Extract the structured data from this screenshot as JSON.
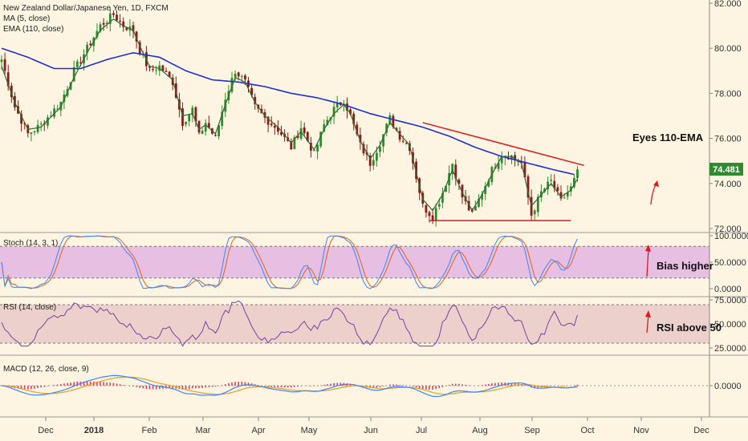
{
  "chart_data": {
    "type": "candlestick",
    "symbol_title": "New Zealand Dollar/Japanese Yen, 1D, FXCM",
    "indicators_main": [
      "MA (5, close)",
      "EMA (110, close)"
    ],
    "x_ticks": [
      "Dec",
      "2018",
      "Feb",
      "Mar",
      "Apr",
      "May",
      "Jun",
      "Jul",
      "Aug",
      "Sep",
      "Oct",
      "Nov",
      "Dec"
    ],
    "main": {
      "y_ticks": [
        "82.000",
        "80.000",
        "78.000",
        "76.000",
        "74.000",
        "72.000"
      ],
      "ylim": [
        72,
        82
      ],
      "last_price": "74.481",
      "price_path": [
        [
          0,
          79.5
        ],
        [
          4,
          77.4
        ],
        [
          8,
          76.2
        ],
        [
          12,
          76.6
        ],
        [
          18,
          77.6
        ],
        [
          22,
          79.0
        ],
        [
          26,
          80.0
        ],
        [
          30,
          81.0
        ],
        [
          34,
          81.5
        ],
        [
          37,
          81.0
        ],
        [
          40,
          80.8
        ],
        [
          42,
          79.9
        ],
        [
          45,
          79.0
        ],
        [
          48,
          79.2
        ],
        [
          52,
          78.5
        ],
        [
          55,
          76.7
        ],
        [
          58,
          77.3
        ],
        [
          60,
          76.1
        ],
        [
          62,
          76.7
        ],
        [
          65,
          76.0
        ],
        [
          68,
          77.8
        ],
        [
          71,
          79.0
        ],
        [
          74,
          78.5
        ],
        [
          77,
          77.4
        ],
        [
          80,
          76.9
        ],
        [
          84,
          76.4
        ],
        [
          88,
          75.6
        ],
        [
          91,
          76.5
        ],
        [
          95,
          75.3
        ],
        [
          98,
          76.6
        ],
        [
          101,
          77.3
        ],
        [
          104,
          77.7
        ],
        [
          106,
          77.0
        ],
        [
          109,
          75.7
        ],
        [
          112,
          74.9
        ],
        [
          115,
          75.8
        ],
        [
          118,
          76.9
        ],
        [
          121,
          76.1
        ],
        [
          124,
          75.6
        ],
        [
          128,
          73.0
        ],
        [
          131,
          72.5
        ],
        [
          134,
          73.6
        ],
        [
          137,
          74.9
        ],
        [
          140,
          73.4
        ],
        [
          143,
          72.6
        ],
        [
          146,
          73.6
        ],
        [
          149,
          74.6
        ],
        [
          152,
          75.3
        ],
        [
          155,
          75.2
        ],
        [
          158,
          74.9
        ],
        [
          161,
          72.6
        ],
        [
          164,
          73.6
        ],
        [
          167,
          74.1
        ],
        [
          170,
          73.2
        ],
        [
          173,
          73.8
        ],
        [
          175,
          74.48
        ]
      ],
      "ma5_path": [
        [
          0,
          79.2
        ],
        [
          4,
          77.6
        ],
        [
          8,
          76.4
        ],
        [
          12,
          76.5
        ],
        [
          18,
          77.4
        ],
        [
          22,
          78.7
        ],
        [
          26,
          79.8
        ],
        [
          30,
          80.8
        ],
        [
          34,
          81.3
        ],
        [
          37,
          81.0
        ],
        [
          40,
          80.8
        ],
        [
          42,
          80.1
        ],
        [
          45,
          79.2
        ],
        [
          48,
          79.1
        ],
        [
          52,
          78.6
        ],
        [
          55,
          77.0
        ],
        [
          58,
          77.1
        ],
        [
          60,
          76.4
        ],
        [
          62,
          76.6
        ],
        [
          65,
          76.2
        ],
        [
          68,
          77.5
        ],
        [
          71,
          78.7
        ],
        [
          74,
          78.5
        ],
        [
          77,
          77.6
        ],
        [
          80,
          77.0
        ],
        [
          84,
          76.5
        ],
        [
          88,
          75.8
        ],
        [
          91,
          76.3
        ],
        [
          95,
          75.5
        ],
        [
          98,
          76.4
        ],
        [
          101,
          77.1
        ],
        [
          104,
          77.5
        ],
        [
          106,
          77.1
        ],
        [
          109,
          75.9
        ],
        [
          112,
          75.1
        ],
        [
          115,
          75.7
        ],
        [
          118,
          76.7
        ],
        [
          121,
          76.2
        ],
        [
          124,
          75.7
        ],
        [
          128,
          73.3
        ],
        [
          131,
          72.8
        ],
        [
          134,
          73.5
        ],
        [
          137,
          74.6
        ],
        [
          140,
          73.6
        ],
        [
          143,
          72.8
        ],
        [
          146,
          73.5
        ],
        [
          149,
          74.4
        ],
        [
          152,
          75.2
        ],
        [
          155,
          75.2
        ],
        [
          158,
          74.9
        ],
        [
          161,
          73.0
        ],
        [
          164,
          73.5
        ],
        [
          167,
          74.0
        ],
        [
          170,
          73.4
        ],
        [
          173,
          73.7
        ],
        [
          175,
          74.2
        ]
      ],
      "ema110_path": [
        [
          0,
          80.0
        ],
        [
          8,
          79.6
        ],
        [
          16,
          79.1
        ],
        [
          24,
          79.1
        ],
        [
          32,
          79.5
        ],
        [
          40,
          79.8
        ],
        [
          48,
          79.6
        ],
        [
          56,
          79.0
        ],
        [
          64,
          78.6
        ],
        [
          72,
          78.5
        ],
        [
          80,
          78.3
        ],
        [
          88,
          78.0
        ],
        [
          96,
          77.8
        ],
        [
          104,
          77.5
        ],
        [
          112,
          77.1
        ],
        [
          120,
          76.8
        ],
        [
          128,
          76.5
        ],
        [
          136,
          76.1
        ],
        [
          144,
          75.6
        ],
        [
          152,
          75.2
        ],
        [
          160,
          74.9
        ],
        [
          168,
          74.6
        ],
        [
          174,
          74.4
        ]
      ],
      "trend_lines": [
        {
          "from": [
            128,
            76.7
          ],
          "to": [
            177,
            74.8
          ],
          "color": "#e01818"
        },
        {
          "from": [
            130,
            72.35
          ],
          "to": [
            173,
            72.35
          ],
          "color": "#e01818"
        }
      ],
      "annotation": "Eyes 110-EMA"
    },
    "stoch": {
      "label": "Stoch (14, 3, 1)",
      "y_ticks": [
        "100.0000",
        "50.0000",
        "0.0000"
      ],
      "ylim": [
        0,
        100
      ],
      "band": [
        20,
        80
      ],
      "annotation": "Bias higher"
    },
    "rsi": {
      "label": "RSI (14, close)",
      "y_ticks": [
        "75.0000",
        "50.0000",
        "25.0000"
      ],
      "ylim": [
        25,
        75
      ],
      "band": [
        30,
        70
      ],
      "annotation": "RSI above 50"
    },
    "macd": {
      "label": "MACD (12, 26, close, 9)",
      "y_ticks": [
        "0.0000"
      ]
    },
    "colors": {
      "bull_candle": "#2e8b2e",
      "bear_candle": "#8b1a1a",
      "ma5": "#2f6b2f",
      "ema110": "#1f2fd0",
      "trend": "#e01818",
      "stoch_k": "#3a86ff",
      "stoch_d": "#e06020",
      "rsi": "#7b3fa0",
      "macd": "#3a86ff",
      "signal": "#e8a020",
      "hist": "#e04060",
      "band_fill": "#e7bfe3",
      "rsi_fill": "#ecd0cc"
    }
  }
}
